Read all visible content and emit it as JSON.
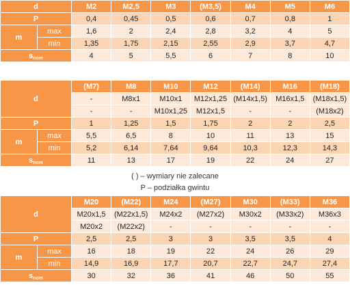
{
  "colors": {
    "header": "#f79646",
    "row_light": "#fde9d9",
    "row_dark": "#fbd4b4"
  },
  "labels": {
    "d": "d",
    "P": "P",
    "m": "m",
    "max": "max",
    "min": "min",
    "s": "s",
    "s_sub": "nom"
  },
  "table1": {
    "sizes": [
      "M2",
      "M2,5",
      "M3",
      "(M3,5)",
      "M4",
      "M5",
      "M6"
    ],
    "P": [
      "0,4",
      "0,45",
      "0,5",
      "0,6",
      "0,7",
      "0,8",
      "1"
    ],
    "m_max": [
      "1,6",
      "2",
      "2,4",
      "2,8",
      "3,2",
      "4",
      "5"
    ],
    "m_min": [
      "1,35",
      "1,75",
      "2,15",
      "2,55",
      "2,9",
      "3,7",
      "4,7"
    ],
    "s_nom": [
      "4",
      "5",
      "5,5",
      "6",
      "7",
      "8",
      "10"
    ]
  },
  "table2": {
    "sizes": [
      "(M7)",
      "M8",
      "M10",
      "M12",
      "(M14)",
      "M16",
      "(M18)"
    ],
    "fine1": [
      "-",
      "M8x1",
      "M10x1",
      "M12x1,25",
      "(M14x1,5)",
      "M16x1,5",
      "(M18x1,5)"
    ],
    "fine2": [
      "-",
      "-",
      "M10x1,25",
      "M12x1,5",
      "-",
      "-",
      "(M18x2)"
    ],
    "P": [
      "1",
      "1,25",
      "1,5",
      "1,75",
      "2",
      "2",
      "2,5"
    ],
    "m_max": [
      "5,5",
      "6,5",
      "8",
      "10",
      "11",
      "13",
      "15"
    ],
    "m_min": [
      "5,2",
      "6,14",
      "7,64",
      "9,64",
      "10,3",
      "12,3",
      "14,3"
    ],
    "s_nom": [
      "11",
      "13",
      "17",
      "19",
      "22",
      "24",
      "27"
    ]
  },
  "notes": {
    "line1": "( ) – wymiary nie zalecane",
    "line2": "P – podziałka gwintu"
  },
  "table3": {
    "sizes": [
      "M20",
      "(M22)",
      "M24",
      "(M27)",
      "M30",
      "(M33)",
      "M36"
    ],
    "fine1": [
      "M20x1,5",
      "(M22x1,5)",
      "M24x2",
      "(M27x2)",
      "M30x2",
      "(M33x2)",
      "M36x3"
    ],
    "fine2": [
      "M20x2",
      "(M22x2)",
      "-",
      "-",
      "-",
      "-",
      "-"
    ],
    "P": [
      "2,5",
      "2,5",
      "3",
      "3",
      "3,5",
      "3,5",
      "4"
    ],
    "m_max": [
      "16",
      "18",
      "19",
      "22",
      "24",
      "26",
      "29"
    ],
    "m_min": [
      "14,9",
      "16,9",
      "17,7",
      "20,7",
      "22,7",
      "24,7",
      "27,4"
    ],
    "s_nom": [
      "30",
      "32",
      "36",
      "41",
      "46",
      "50",
      "55"
    ]
  }
}
